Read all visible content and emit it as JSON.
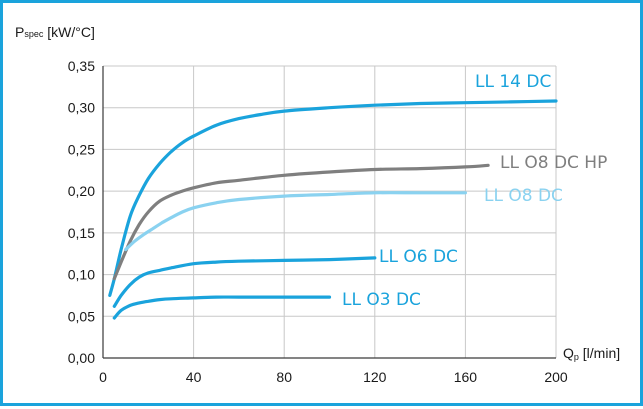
{
  "chart_data": {
    "type": "line",
    "xlabel_main": "Q",
    "xlabel_sub": "p",
    "xlabel_unit": " [l/min]",
    "ylabel_main": "P",
    "ylabel_sub": "spec",
    "ylabel_unit": " [kW/°C]",
    "xlim": [
      0,
      200
    ],
    "ylim": [
      0,
      0.35
    ],
    "xticks": [
      0,
      40,
      80,
      120,
      160,
      200
    ],
    "xtick_labels": [
      "0",
      "40",
      "80",
      "120",
      "160",
      "200"
    ],
    "yticks": [
      0,
      0.05,
      0.1,
      0.15,
      0.2,
      0.25,
      0.3,
      0.35
    ],
    "ytick_labels": [
      "0,00",
      "0,05",
      "0,10",
      "0,15",
      "0,20",
      "0,25",
      "0,30",
      "0,35"
    ],
    "grid": true,
    "series": [
      {
        "name": "LL 14 DC",
        "color": "#1aa3dc",
        "x": [
          3,
          5,
          8,
          12,
          16,
          20,
          25,
          30,
          35,
          40,
          50,
          60,
          70,
          80,
          100,
          120,
          140,
          160,
          180,
          200
        ],
        "y": [
          0.075,
          0.095,
          0.13,
          0.17,
          0.195,
          0.215,
          0.233,
          0.247,
          0.258,
          0.266,
          0.279,
          0.287,
          0.292,
          0.296,
          0.3,
          0.303,
          0.305,
          0.306,
          0.307,
          0.308
        ]
      },
      {
        "name": "LL 08 DC HP",
        "color": "#7f7f7f",
        "x": [
          5,
          8,
          12,
          16,
          20,
          25,
          30,
          35,
          40,
          50,
          60,
          80,
          100,
          120,
          140,
          160,
          170
        ],
        "y": [
          0.095,
          0.115,
          0.14,
          0.16,
          0.175,
          0.188,
          0.195,
          0.2,
          0.204,
          0.21,
          0.213,
          0.219,
          0.223,
          0.226,
          0.227,
          0.229,
          0.231
        ]
      },
      {
        "name": "LL 08 DC",
        "color": "#8ad2f0",
        "x": [
          10,
          14,
          18,
          22,
          26,
          30,
          35,
          40,
          50,
          60,
          80,
          100,
          120,
          140,
          160
        ],
        "y": [
          0.13,
          0.14,
          0.148,
          0.155,
          0.162,
          0.168,
          0.175,
          0.18,
          0.186,
          0.19,
          0.194,
          0.196,
          0.198,
          0.198,
          0.198
        ]
      },
      {
        "name": "LL 06 DC",
        "color": "#1aa3dc",
        "x": [
          5,
          8,
          12,
          16,
          20,
          25,
          30,
          40,
          50,
          60,
          80,
          100,
          120
        ],
        "y": [
          0.062,
          0.075,
          0.088,
          0.097,
          0.102,
          0.105,
          0.108,
          0.113,
          0.115,
          0.116,
          0.117,
          0.118,
          0.12
        ]
      },
      {
        "name": "LL 03 DC",
        "color": "#1aa3dc",
        "x": [
          5,
          8,
          12,
          16,
          20,
          25,
          30,
          40,
          50,
          60,
          80,
          100
        ],
        "y": [
          0.048,
          0.057,
          0.063,
          0.066,
          0.068,
          0.07,
          0.071,
          0.072,
          0.073,
          0.073,
          0.073,
          0.073
        ]
      }
    ],
    "labels": [
      {
        "text": "LL 14 DC",
        "color": "#1aa3dc"
      },
      {
        "text": "LL O8 DC HP",
        "color": "#7f7f7f"
      },
      {
        "text": "LL O8 DC",
        "color": "#8ad2f0"
      },
      {
        "text": "LL O6 DC",
        "color": "#1aa3dc"
      },
      {
        "text": "LL O3 DC",
        "color": "#1aa3dc"
      }
    ]
  }
}
